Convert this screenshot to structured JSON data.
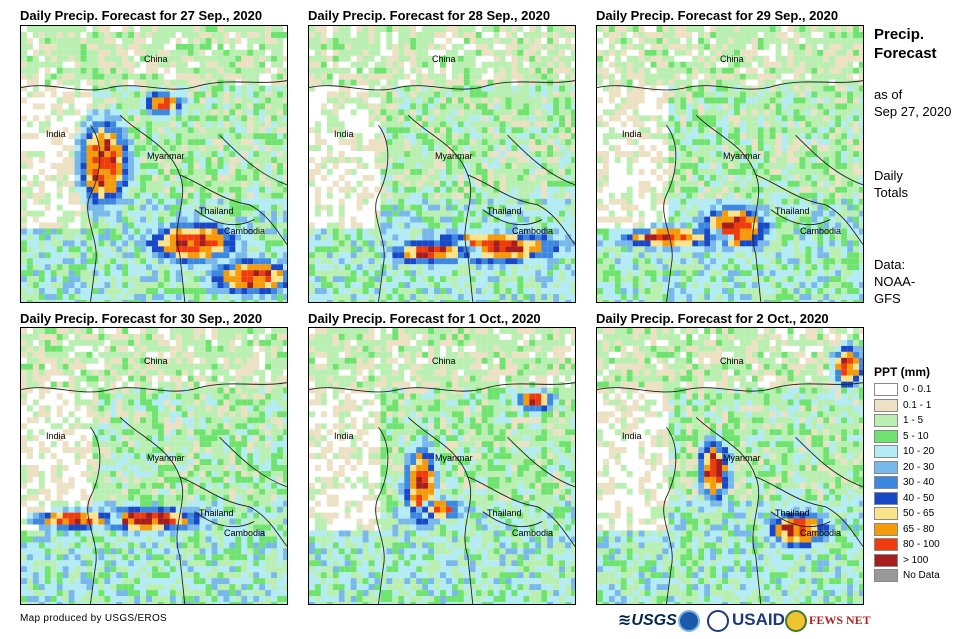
{
  "panels": [
    {
      "title": "Daily Precip. Forecast for 27 Sep., 2020"
    },
    {
      "title": "Daily Precip. Forecast for 28 Sep., 2020"
    },
    {
      "title": "Daily Precip. Forecast for 29 Sep., 2020"
    },
    {
      "title": "Daily Precip. Forecast for 30 Sep., 2020"
    },
    {
      "title": "Daily Precip. Forecast for 1 Oct., 2020"
    },
    {
      "title": "Daily Precip. Forecast for 2 Oct., 2020"
    }
  ],
  "places": {
    "china": "China",
    "india": "India",
    "myanmar": "Myanmar",
    "thailand": "Thailand",
    "cambodia": "Cambodia"
  },
  "sidebar": {
    "title_line1": "Precip.",
    "title_line2": "Forecast",
    "asof_line1": "as of",
    "asof_line2": "Sep 27, 2020",
    "period_line1": "Daily",
    "period_line2": "Totals",
    "source_line1": "Data:",
    "source_line2": "NOAA-",
    "source_line3": "GFS"
  },
  "legend": {
    "title": "PPT (mm)",
    "items": [
      {
        "label": "0 - 0.1",
        "color": "#ffffff"
      },
      {
        "label": "0.1 - 1",
        "color": "#ede1c4"
      },
      {
        "label": "1 - 5",
        "color": "#b9f0b2"
      },
      {
        "label": "5 - 10",
        "color": "#6ee46e"
      },
      {
        "label": "10 - 20",
        "color": "#b3ecf4"
      },
      {
        "label": "20 - 30",
        "color": "#78b8ea"
      },
      {
        "label": "30 - 40",
        "color": "#3c87e0"
      },
      {
        "label": "40 - 50",
        "color": "#1848c8"
      },
      {
        "label": "50 - 65",
        "color": "#fbe389"
      },
      {
        "label": "65 - 80",
        "color": "#f59a0a"
      },
      {
        "label": "80 - 100",
        "color": "#f03c0c"
      },
      {
        "label": "> 100",
        "color": "#a51d1d"
      },
      {
        "label": "No Data",
        "color": "#999999"
      }
    ]
  },
  "footer": {
    "credit": "Map produced by USGS/EROS",
    "logo_usgs": "≋USGS",
    "logo_usaid": "USAID",
    "logo_fews": "FEWS NET"
  }
}
